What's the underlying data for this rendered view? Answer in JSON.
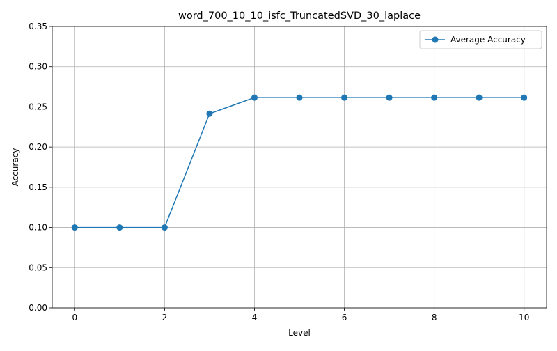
{
  "chart_data": {
    "type": "line",
    "title": "word_700_10_10_isfc_TruncatedSVD_30_laplace",
    "xlabel": "Level",
    "ylabel": "Accuracy",
    "xlim": [
      -0.5,
      10.5
    ],
    "ylim": [
      0.0,
      0.35
    ],
    "x_ticks": [
      0,
      2,
      4,
      6,
      8,
      10
    ],
    "x_tick_labels": [
      "0",
      "2",
      "4",
      "6",
      "8",
      "10"
    ],
    "y_ticks": [
      0.0,
      0.05,
      0.1,
      0.15,
      0.2,
      0.25,
      0.3,
      0.35
    ],
    "y_tick_labels": [
      "0.00",
      "0.05",
      "0.10",
      "0.15",
      "0.20",
      "0.25",
      "0.30",
      "0.35"
    ],
    "grid": true,
    "legend": "upper-right",
    "series": [
      {
        "name": "Average Accuracy",
        "color": "#1f77b4",
        "marker": "circle",
        "x": [
          0,
          1,
          2,
          3,
          4,
          5,
          6,
          7,
          8,
          9,
          10
        ],
        "y": [
          0.1,
          0.1,
          0.1,
          0.2415,
          0.2615,
          0.2615,
          0.2615,
          0.2615,
          0.2615,
          0.2615,
          0.2615
        ]
      }
    ]
  }
}
